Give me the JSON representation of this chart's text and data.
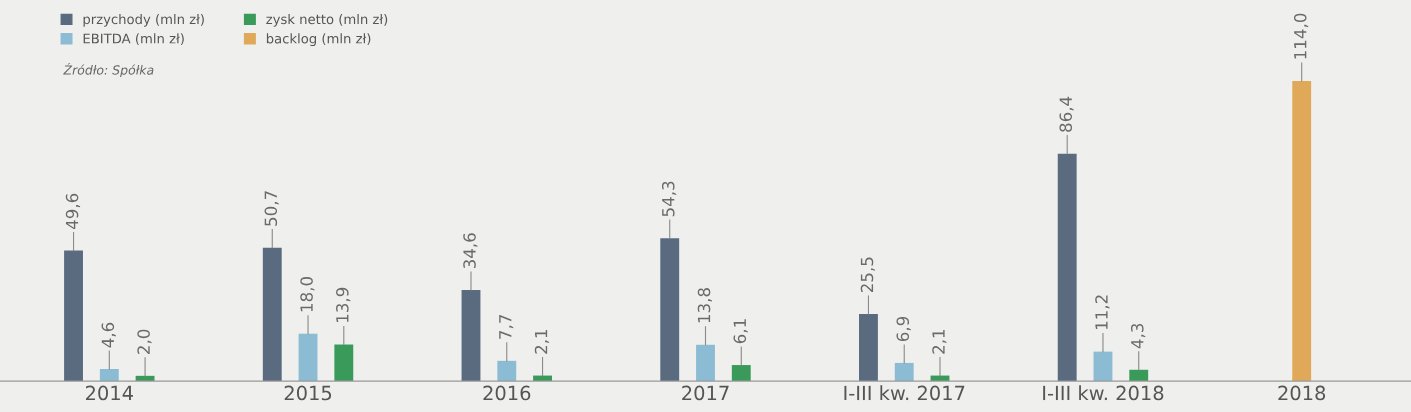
{
  "chart_data": {
    "type": "bar",
    "categories": [
      "2014",
      "2015",
      "2016",
      "2017",
      "I-III kw. 2017",
      "I-III kw. 2018",
      "2018"
    ],
    "series": [
      {
        "name": "przychody (mln zł)",
        "color": "#5a6b80",
        "values": [
          49.6,
          50.7,
          34.6,
          54.3,
          25.5,
          86.4,
          null
        ],
        "value_labels": [
          "49,6",
          "50,7",
          "34,6",
          "54,3",
          "25,5",
          "86,4",
          null
        ]
      },
      {
        "name": "EBITDA (mln zł)",
        "color": "#8bbcd4",
        "values": [
          4.6,
          18.0,
          7.7,
          13.8,
          6.9,
          11.2,
          null
        ],
        "value_labels": [
          "4,6",
          "18,0",
          "7,7",
          "13,8",
          "6,9",
          "11,2",
          null
        ]
      },
      {
        "name": "zysk netto (mln zł)",
        "color": "#3a9a5a",
        "values": [
          2.0,
          13.9,
          2.1,
          6.1,
          2.1,
          4.3,
          null
        ],
        "value_labels": [
          "2,0",
          "13,9",
          "2,1",
          "6,1",
          "2,1",
          "4,3",
          null
        ]
      },
      {
        "name": "backlog (mln zł)",
        "color": "#e0a95a",
        "values": [
          null,
          null,
          null,
          null,
          null,
          null,
          114.0
        ],
        "value_labels": [
          null,
          null,
          null,
          null,
          null,
          null,
          "114,0"
        ]
      }
    ],
    "annotations": [
      "Źródło: Spółka"
    ],
    "legend": "top left",
    "tick_labels": "x",
    "grid": false
  }
}
